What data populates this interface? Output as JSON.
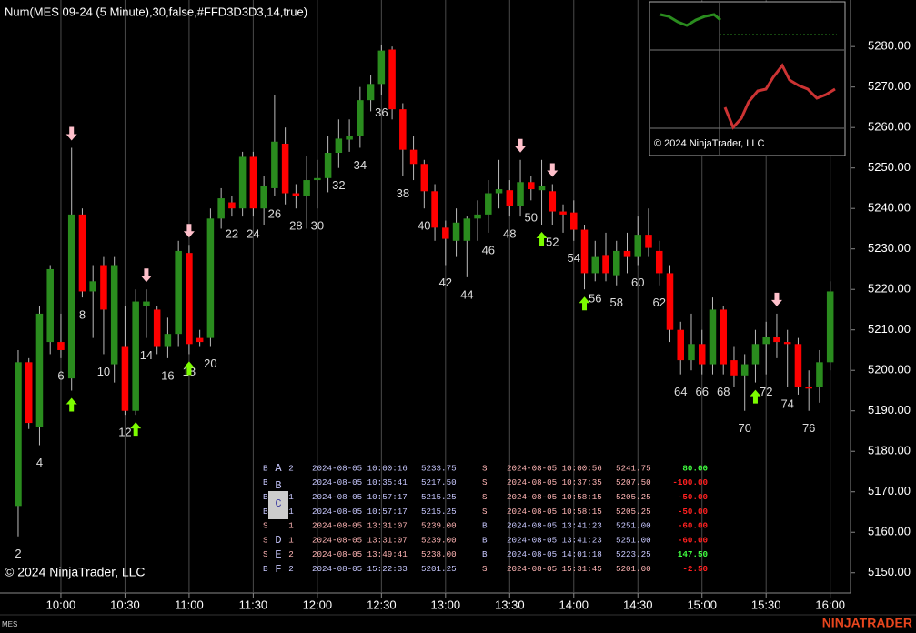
{
  "chart_data": {
    "type": "candlestick",
    "title": "Num(MES 09-24 (5 Minute),30,false,#FFD3D3D3,14,true)",
    "watermark": "© 2024 NinjaTrader, LLC",
    "instrument": "MES",
    "brand": "NINJATRADER",
    "up_color": "#2a8c1e",
    "down_color": "#ff0000",
    "grid": true,
    "xlim": [
      0.3,
      79.9
    ],
    "ylim": [
      5145,
      5291.5
    ],
    "xticks": [
      {
        "value": 6,
        "label": "10:00"
      },
      {
        "value": 12,
        "label": "10:30"
      },
      {
        "value": 18,
        "label": "11:00"
      },
      {
        "value": 24,
        "label": "11:30"
      },
      {
        "value": 30,
        "label": "12:00"
      },
      {
        "value": 36,
        "label": "12:30"
      },
      {
        "value": 42,
        "label": "13:00"
      },
      {
        "value": 48,
        "label": "13:30"
      },
      {
        "value": 54,
        "label": "14:00"
      },
      {
        "value": 60,
        "label": "14:30"
      },
      {
        "value": 66,
        "label": "15:00"
      },
      {
        "value": 72,
        "label": "15:30"
      },
      {
        "value": 78,
        "label": "16:00"
      }
    ],
    "yticks": [
      {
        "value": 5150,
        "label": "5150.00"
      },
      {
        "value": 5160,
        "label": "5160.00"
      },
      {
        "value": 5170,
        "label": "5170.00"
      },
      {
        "value": 5180,
        "label": "5180.00"
      },
      {
        "value": 5190,
        "label": "5190.00"
      },
      {
        "value": 5200,
        "label": "5200.00"
      },
      {
        "value": 5210,
        "label": "5210.00"
      },
      {
        "value": 5220,
        "label": "5220.00"
      },
      {
        "value": 5230,
        "label": "5230.00"
      },
      {
        "value": 5240,
        "label": "5240.00"
      },
      {
        "value": 5250,
        "label": "5250.00"
      },
      {
        "value": 5260,
        "label": "5260.00"
      },
      {
        "value": 5270,
        "label": "5270.00"
      },
      {
        "value": 5280,
        "label": "5280.00"
      }
    ],
    "candles": [
      {
        "bar": 2,
        "open": 5166.5,
        "high": 5205,
        "low": 5159,
        "close": 5202
      },
      {
        "bar": 3,
        "open": 5202,
        "high": 5203,
        "low": 5185.5,
        "close": 5187
      },
      {
        "bar": 4,
        "open": 5186,
        "high": 5216,
        "low": 5181.5,
        "close": 5214
      },
      {
        "bar": 5,
        "open": 5207,
        "high": 5226,
        "low": 5204,
        "close": 5225
      },
      {
        "bar": 6,
        "open": 5207,
        "high": 5214,
        "low": 5203,
        "close": 5205
      },
      {
        "bar": 7,
        "open": 5198,
        "high": 5255,
        "low": 5195,
        "close": 5238.5
      },
      {
        "bar": 8,
        "open": 5238.5,
        "high": 5240,
        "low": 5218,
        "close": 5219.5
      },
      {
        "bar": 9,
        "open": 5219.5,
        "high": 5226,
        "low": 5208,
        "close": 5222
      },
      {
        "bar": 10,
        "open": 5226,
        "high": 5228,
        "low": 5204,
        "close": 5215
      },
      {
        "bar": 11,
        "open": 5201.5,
        "high": 5228,
        "low": 5197,
        "close": 5226
      },
      {
        "bar": 12,
        "open": 5206,
        "high": 5216,
        "low": 5189,
        "close": 5190
      },
      {
        "bar": 13,
        "open": 5190,
        "high": 5220,
        "low": 5189,
        "close": 5217
      },
      {
        "bar": 14,
        "open": 5216,
        "high": 5220,
        "low": 5208,
        "close": 5217
      },
      {
        "bar": 15,
        "open": 5215,
        "high": 5216,
        "low": 5204,
        "close": 5206
      },
      {
        "bar": 16,
        "open": 5206,
        "high": 5213,
        "low": 5203,
        "close": 5209
      },
      {
        "bar": 17,
        "open": 5209,
        "high": 5232,
        "low": 5206,
        "close": 5229.5
      },
      {
        "bar": 18,
        "open": 5229,
        "high": 5231,
        "low": 5204,
        "close": 5206.5
      },
      {
        "bar": 19,
        "open": 5208,
        "high": 5210,
        "low": 5206,
        "close": 5207
      },
      {
        "bar": 20,
        "open": 5208,
        "high": 5240,
        "low": 5206,
        "close": 5237.5
      },
      {
        "bar": 21,
        "open": 5237.5,
        "high": 5245,
        "low": 5235,
        "close": 5242.5
      },
      {
        "bar": 22,
        "open": 5241.5,
        "high": 5243,
        "low": 5238,
        "close": 5240
      },
      {
        "bar": 23,
        "open": 5240,
        "high": 5254,
        "low": 5238,
        "close": 5252.75
      },
      {
        "bar": 24,
        "open": 5252.75,
        "high": 5254,
        "low": 5238,
        "close": 5240
      },
      {
        "bar": 25,
        "open": 5240,
        "high": 5248,
        "low": 5236,
        "close": 5245.5
      },
      {
        "bar": 26,
        "open": 5245,
        "high": 5268,
        "low": 5243,
        "close": 5256.5
      },
      {
        "bar": 27,
        "open": 5256,
        "high": 5260,
        "low": 5241,
        "close": 5243.75
      },
      {
        "bar": 28,
        "open": 5243.75,
        "high": 5246,
        "low": 5240,
        "close": 5243
      },
      {
        "bar": 29,
        "open": 5243,
        "high": 5253,
        "low": 5235,
        "close": 5247
      },
      {
        "bar": 30,
        "open": 5247,
        "high": 5252,
        "low": 5240,
        "close": 5247.5
      },
      {
        "bar": 31,
        "open": 5247.5,
        "high": 5258,
        "low": 5244,
        "close": 5253.75
      },
      {
        "bar": 32,
        "open": 5253.75,
        "high": 5262,
        "low": 5250,
        "close": 5257.25
      },
      {
        "bar": 33,
        "open": 5257,
        "high": 5262,
        "low": 5254,
        "close": 5258
      },
      {
        "bar": 34,
        "open": 5258,
        "high": 5270,
        "low": 5255,
        "close": 5266.75
      },
      {
        "bar": 35,
        "open": 5266.75,
        "high": 5273,
        "low": 5264,
        "close": 5270.75
      },
      {
        "bar": 36,
        "open": 5270.75,
        "high": 5280.5,
        "low": 5268,
        "close": 5279
      },
      {
        "bar": 37,
        "open": 5279.25,
        "high": 5280,
        "low": 5262,
        "close": 5264.5
      },
      {
        "bar": 38,
        "open": 5264.5,
        "high": 5266,
        "low": 5248,
        "close": 5254.5
      },
      {
        "bar": 39,
        "open": 5254.5,
        "high": 5258,
        "low": 5247,
        "close": 5251
      },
      {
        "bar": 40,
        "open": 5251,
        "high": 5252,
        "low": 5240,
        "close": 5244.25
      },
      {
        "bar": 41,
        "open": 5244.25,
        "high": 5246,
        "low": 5232,
        "close": 5235.25
      },
      {
        "bar": 42,
        "open": 5235.25,
        "high": 5237,
        "low": 5226,
        "close": 5232.5
      },
      {
        "bar": 43,
        "open": 5232,
        "high": 5240,
        "low": 5228,
        "close": 5236.5
      },
      {
        "bar": 44,
        "open": 5232,
        "high": 5238,
        "low": 5223,
        "close": 5237.5
      },
      {
        "bar": 45,
        "open": 5237.5,
        "high": 5242,
        "low": 5232,
        "close": 5238.5
      },
      {
        "bar": 46,
        "open": 5238.5,
        "high": 5247,
        "low": 5234,
        "close": 5243.75
      },
      {
        "bar": 47,
        "open": 5243.75,
        "high": 5252,
        "low": 5240,
        "close": 5244.75
      },
      {
        "bar": 48,
        "open": 5244.5,
        "high": 5247,
        "low": 5238,
        "close": 5240.5
      },
      {
        "bar": 49,
        "open": 5240.5,
        "high": 5252,
        "low": 5238,
        "close": 5246.5
      },
      {
        "bar": 50,
        "open": 5246.5,
        "high": 5248,
        "low": 5242,
        "close": 5244.75
      },
      {
        "bar": 51,
        "open": 5244.5,
        "high": 5252,
        "low": 5236,
        "close": 5245.5
      },
      {
        "bar": 52,
        "open": 5244.25,
        "high": 5246,
        "low": 5236,
        "close": 5239.25
      },
      {
        "bar": 53,
        "open": 5239.25,
        "high": 5241,
        "low": 5234,
        "close": 5238.5
      },
      {
        "bar": 54,
        "open": 5239,
        "high": 5242,
        "low": 5232,
        "close": 5234.75
      },
      {
        "bar": 55,
        "open": 5234.75,
        "high": 5236,
        "low": 5220,
        "close": 5224
      },
      {
        "bar": 56,
        "open": 5224,
        "high": 5232,
        "low": 5222,
        "close": 5228
      },
      {
        "bar": 57,
        "open": 5228.5,
        "high": 5234,
        "low": 5222,
        "close": 5224
      },
      {
        "bar": 58,
        "open": 5223.5,
        "high": 5232,
        "low": 5221,
        "close": 5229.5
      },
      {
        "bar": 59,
        "open": 5229.5,
        "high": 5234,
        "low": 5224,
        "close": 5228
      },
      {
        "bar": 60,
        "open": 5228,
        "high": 5238,
        "low": 5226,
        "close": 5233.5
      },
      {
        "bar": 61,
        "open": 5233.5,
        "high": 5240,
        "low": 5228,
        "close": 5230.25
      },
      {
        "bar": 62,
        "open": 5229.5,
        "high": 5232,
        "low": 5221,
        "close": 5224
      },
      {
        "bar": 63,
        "open": 5224,
        "high": 5226,
        "low": 5207,
        "close": 5210
      },
      {
        "bar": 64,
        "open": 5210,
        "high": 5212,
        "low": 5199,
        "close": 5202.5
      },
      {
        "bar": 65,
        "open": 5202.5,
        "high": 5214,
        "low": 5200,
        "close": 5206.5
      },
      {
        "bar": 66,
        "open": 5206.5,
        "high": 5210,
        "low": 5199,
        "close": 5201.5
      },
      {
        "bar": 67,
        "open": 5201.5,
        "high": 5218,
        "low": 5199,
        "close": 5215
      },
      {
        "bar": 68,
        "open": 5215,
        "high": 5216,
        "low": 5199,
        "close": 5201.5
      },
      {
        "bar": 69,
        "open": 5202.5,
        "high": 5206,
        "low": 5196,
        "close": 5198.75
      },
      {
        "bar": 70,
        "open": 5198.75,
        "high": 5204,
        "low": 5190,
        "close": 5201.5
      },
      {
        "bar": 71,
        "open": 5201.5,
        "high": 5210,
        "low": 5197,
        "close": 5206.5
      },
      {
        "bar": 72,
        "open": 5206.5,
        "high": 5212,
        "low": 5199,
        "close": 5208.25
      },
      {
        "bar": 73,
        "open": 5208.25,
        "high": 5214,
        "low": 5203,
        "close": 5207
      },
      {
        "bar": 74,
        "open": 5207,
        "high": 5210,
        "low": 5196,
        "close": 5206.5
      },
      {
        "bar": 75,
        "open": 5206.5,
        "high": 5208,
        "low": 5194,
        "close": 5196
      },
      {
        "bar": 76,
        "open": 5196,
        "high": 5200,
        "low": 5190,
        "close": 5195.5
      },
      {
        "bar": 77,
        "open": 5196,
        "high": 5205,
        "low": 5192,
        "close": 5202
      },
      {
        "bar": 78,
        "open": 5202,
        "high": 5222,
        "low": 5200,
        "close": 5219.5
      }
    ],
    "bar_labels": [
      2,
      4,
      6,
      8,
      10,
      12,
      14,
      16,
      18,
      20,
      22,
      24,
      26,
      28,
      30,
      32,
      34,
      36,
      38,
      40,
      42,
      44,
      46,
      48,
      50,
      52,
      54,
      56,
      58,
      60,
      62,
      64,
      66,
      68,
      70,
      72,
      74,
      76
    ],
    "buy_signals": [
      7,
      13,
      18,
      51,
      55,
      71
    ],
    "sell_signals": [
      7,
      14,
      18,
      49,
      52,
      73
    ],
    "inset_copyright": "© 2024 NinjaTrader, LLC",
    "trades": [
      {
        "side": "B",
        "letter": "A",
        "qty": "2",
        "entry_time": "2024-08-05 10:00:16",
        "entry_price": "5233.75",
        "exit_side": "S",
        "exit_time": "2024-08-05 10:00:56",
        "exit_price": "5241.75",
        "pnl": "80.00"
      },
      {
        "side": "B",
        "letter": "B",
        "entry_time": "2024-08-05 10:35:41",
        "entry_price": "5217.50",
        "exit_side": "S",
        "exit_time": "2024-08-05 10:37:35",
        "exit_price": "5207.50",
        "pnl": "-100.00"
      },
      {
        "side": "B",
        "letter": "C",
        "qty": "1",
        "entry_time": "2024-08-05 10:57:17",
        "entry_price": "5215.25",
        "exit_side": "S",
        "exit_time": "2024-08-05 10:58:15",
        "exit_price": "5205.25",
        "pnl": "-50.00"
      },
      {
        "side": "B",
        "qty": "1",
        "entry_time": "2024-08-05 10:57:17",
        "entry_price": "5215.25",
        "exit_side": "S",
        "exit_time": "2024-08-05 10:58:15",
        "exit_price": "5205.25",
        "pnl": "-50.00"
      },
      {
        "side": "S",
        "qty": "1",
        "entry_time": "2024-08-05 13:31:07",
        "entry_price": "5239.00",
        "exit_side": "B",
        "exit_time": "2024-08-05 13:41:23",
        "exit_price": "5251.00",
        "pnl": "-60.00"
      },
      {
        "side": "S",
        "letter": "D",
        "qty": "1",
        "entry_time": "2024-08-05 13:31:07",
        "entry_price": "5239.00",
        "exit_side": "B",
        "exit_time": "2024-08-05 13:41:23",
        "exit_price": "5251.00",
        "pnl": "-60.00"
      },
      {
        "side": "S",
        "letter": "E",
        "qty": "2",
        "entry_time": "2024-08-05 13:49:41",
        "entry_price": "5238.00",
        "exit_side": "B",
        "exit_time": "2024-08-05 14:01:18",
        "exit_price": "5223.25",
        "pnl": "147.50"
      },
      {
        "side": "B",
        "letter": "F",
        "qty": "2",
        "entry_time": "2024-08-05 15:22:33",
        "entry_price": "5201.25",
        "exit_side": "S",
        "exit_time": "2024-08-05 15:31:45",
        "exit_price": "5201.00",
        "pnl": "-2.50"
      }
    ]
  }
}
